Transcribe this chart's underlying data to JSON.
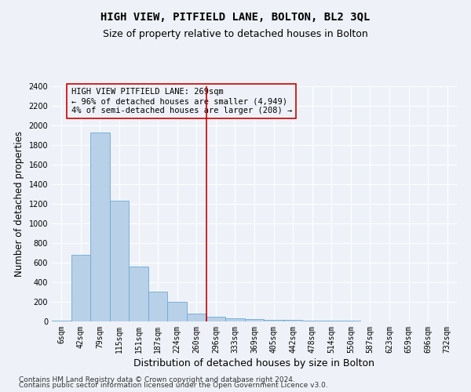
{
  "title": "HIGH VIEW, PITFIELD LANE, BOLTON, BL2 3QL",
  "subtitle": "Size of property relative to detached houses in Bolton",
  "xlabel": "Distribution of detached houses by size in Bolton",
  "ylabel": "Number of detached properties",
  "footnote1": "Contains HM Land Registry data © Crown copyright and database right 2024.",
  "footnote2": "Contains public sector information licensed under the Open Government Licence v3.0.",
  "bar_labels": [
    "6sqm",
    "42sqm",
    "79sqm",
    "115sqm",
    "151sqm",
    "187sqm",
    "224sqm",
    "260sqm",
    "296sqm",
    "333sqm",
    "369sqm",
    "405sqm",
    "442sqm",
    "478sqm",
    "514sqm",
    "550sqm",
    "587sqm",
    "623sqm",
    "659sqm",
    "696sqm",
    "732sqm"
  ],
  "bar_values": [
    10,
    680,
    1930,
    1230,
    560,
    305,
    200,
    80,
    45,
    30,
    22,
    18,
    14,
    10,
    6,
    5,
    3,
    2,
    1,
    1,
    1
  ],
  "bar_color": "#b8d0e8",
  "bar_edge_color": "#6aaad4",
  "vline_x": 7.5,
  "vline_color": "#cc0000",
  "annotation_line1": "HIGH VIEW PITFIELD LANE: 269sqm",
  "annotation_line2": "← 96% of detached houses are smaller (4,949)",
  "annotation_line3": "4% of semi-detached houses are larger (208) →",
  "annotation_box_color": "#cc0000",
  "ylim": [
    0,
    2400
  ],
  "yticks": [
    0,
    200,
    400,
    600,
    800,
    1000,
    1200,
    1400,
    1600,
    1800,
    2000,
    2200,
    2400
  ],
  "background_color": "#eef2f8",
  "grid_color": "#ffffff",
  "title_fontsize": 10,
  "subtitle_fontsize": 9,
  "axis_label_fontsize": 8.5,
  "tick_fontsize": 7,
  "annotation_fontsize": 7.5,
  "footnote_fontsize": 6.5
}
